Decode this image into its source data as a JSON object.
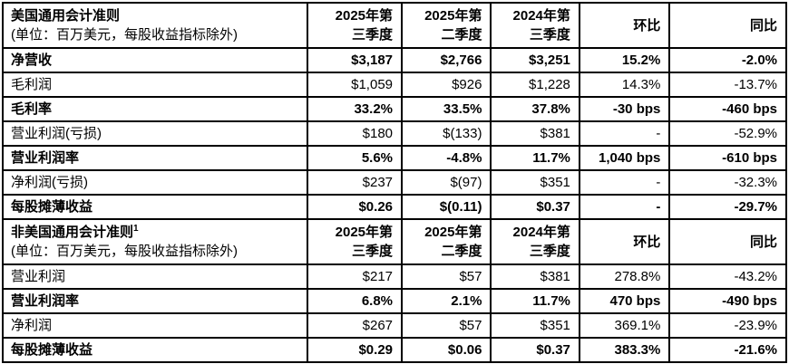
{
  "colors": {
    "background": "#ffffff",
    "border": "#000000",
    "text": "#000000"
  },
  "table": {
    "columns": {
      "q_current": "2025年第\n三季度",
      "q_prior": "2025年第\n二季度",
      "q_year_ago": "2024年第\n三季度",
      "qoq": "环比",
      "yoy": "同比"
    },
    "sections": [
      {
        "title": "美国通用会计准则",
        "title_sup": "",
        "subtitle": "(单位：百万美元，每股收益指标除外)",
        "rows": [
          {
            "label": "净营收",
            "emphasis": true,
            "values": [
              "$3,187",
              "$2,766",
              "$3,251",
              "15.2%",
              "-2.0%"
            ]
          },
          {
            "label": "毛利润",
            "emphasis": false,
            "values": [
              "$1,059",
              "$926",
              "$1,228",
              "14.3%",
              "-13.7%"
            ]
          },
          {
            "label": "毛利率",
            "emphasis": true,
            "values": [
              "33.2%",
              "33.5%",
              "37.8%",
              "-30 bps",
              "-460 bps"
            ]
          },
          {
            "label": "营业利润(亏损)",
            "emphasis": false,
            "values": [
              "$180",
              "$(133)",
              "$381",
              "-",
              "-52.9%"
            ]
          },
          {
            "label": "营业利润率",
            "emphasis": true,
            "values": [
              "5.6%",
              "-4.8%",
              "11.7%",
              "1,040 bps",
              "-610 bps"
            ]
          },
          {
            "label": "净利润(亏损)",
            "emphasis": false,
            "values": [
              "$237",
              "$(97)",
              "$351",
              "-",
              "-32.3%"
            ]
          },
          {
            "label": "每股摊薄收益",
            "emphasis": true,
            "values": [
              "$0.26",
              "$(0.11)",
              "$0.37",
              "-",
              "-29.7%"
            ]
          }
        ]
      },
      {
        "title": "非美国通用会计准则",
        "title_sup": "1",
        "subtitle": "(单位：百万美元，每股收益指标除外)",
        "rows": [
          {
            "label": "营业利润",
            "emphasis": false,
            "values": [
              "$217",
              "$57",
              "$381",
              "278.8%",
              "-43.2%"
            ]
          },
          {
            "label": "营业利润率",
            "emphasis": true,
            "values": [
              "6.8%",
              "2.1%",
              "11.7%",
              "470 bps",
              "-490 bps"
            ]
          },
          {
            "label": "净利润",
            "emphasis": false,
            "values": [
              "$267",
              "$57",
              "$351",
              "369.1%",
              "-23.9%"
            ]
          },
          {
            "label": "每股摊薄收益",
            "emphasis": true,
            "values": [
              "$0.29",
              "$0.06",
              "$0.37",
              "383.3%",
              "-21.6%"
            ]
          }
        ]
      }
    ]
  }
}
